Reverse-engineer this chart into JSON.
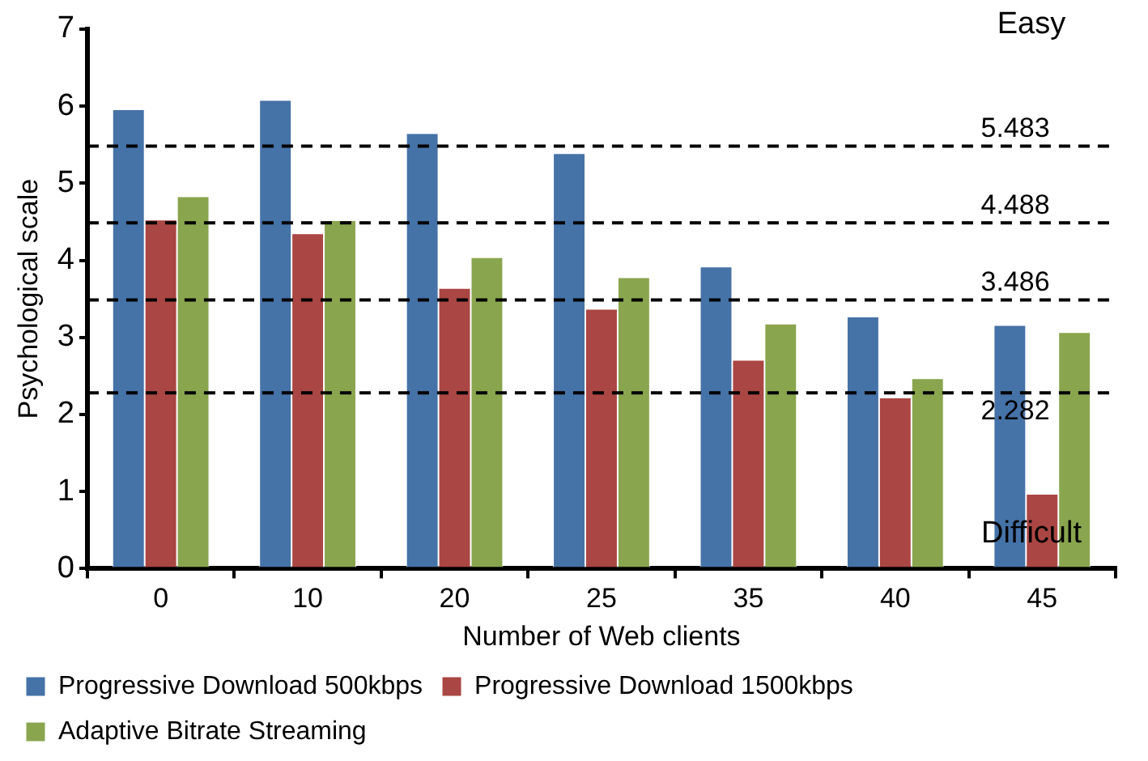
{
  "chart_data": {
    "type": "bar",
    "xlabel": "Number of Web clients",
    "ylabel": "Psychological scale",
    "categories": [
      "0",
      "10",
      "20",
      "25",
      "35",
      "40",
      "45"
    ],
    "series": [
      {
        "name": "Progressive Download 500kbps",
        "color": "#4572a7",
        "values": [
          5.96,
          6.08,
          5.65,
          5.39,
          3.92,
          3.27,
          3.16
        ]
      },
      {
        "name": "Progressive Download 1500kbps",
        "color": "#aa4643",
        "values": [
          4.53,
          4.35,
          3.64,
          3.37,
          2.71,
          2.22,
          0.97
        ]
      },
      {
        "name": "Adaptive Bitrate Streaming",
        "color": "#89a54e",
        "values": [
          4.83,
          4.52,
          4.04,
          3.78,
          3.18,
          2.47,
          3.07
        ]
      }
    ],
    "ylim": [
      0,
      7
    ],
    "yticks": [
      0,
      1,
      2,
      3,
      4,
      5,
      6,
      7
    ],
    "grid": false,
    "legend": "bottom",
    "ref_lines": [
      {
        "axis": "y",
        "value": 5.483,
        "label": "5.483",
        "color": "#000000",
        "line_style": "dashed"
      },
      {
        "axis": "y",
        "value": 4.488,
        "label": "4.488",
        "color": "#000000",
        "line_style": "dashed"
      },
      {
        "axis": "y",
        "value": 3.486,
        "label": "3.486",
        "color": "#000000",
        "line_style": "dashed"
      },
      {
        "axis": "y",
        "value": 2.282,
        "label": "2.282",
        "color": "#000000",
        "line_style": "dashed"
      }
    ],
    "annotations": [
      "Easy",
      "Difficult"
    ]
  }
}
